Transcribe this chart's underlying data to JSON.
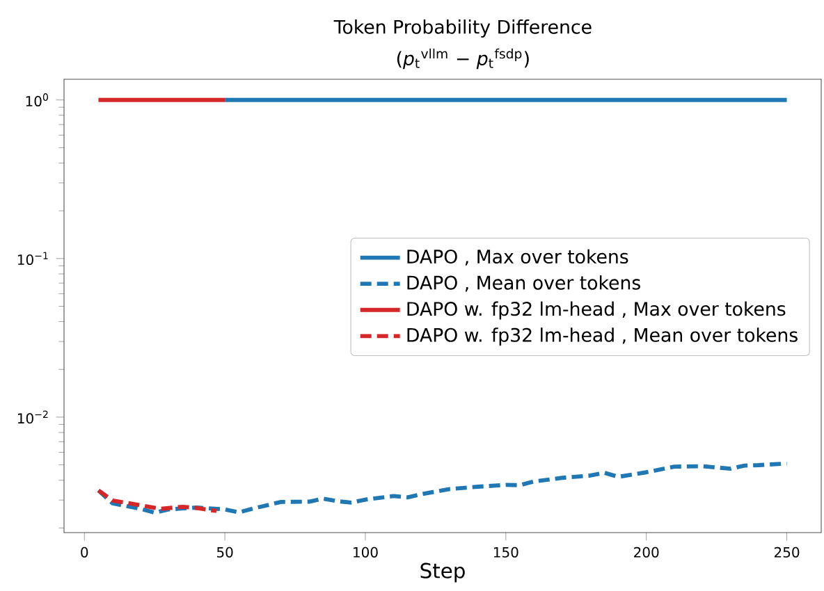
{
  "chart_data": {
    "type": "line",
    "title": "Token Probability Difference",
    "subtitle": "(*p*$_{t}$$^{vllm}$ − *p*$_{t}$$^{fsdp}$)",
    "xlabel": "Step",
    "log": "y",
    "legend": "right",
    "xlim": [
      -7.25,
      262.25
    ],
    "ylim": [
      0.00187,
      1.35
    ],
    "xticks": [
      0,
      50,
      100,
      150,
      200,
      250
    ],
    "yticks": [
      {
        "value": 0.01,
        "label": "10$^{−2}$"
      },
      {
        "value": 0.1,
        "label": "10$^{−1}$"
      },
      {
        "value": 1,
        "label": "10$^{0}$"
      }
    ],
    "series": [
      {
        "name": "DAPO , Max over tokens",
        "color": "#1f77b4",
        "line_style": "solid",
        "x": [
          50,
          250
        ],
        "values": [
          1,
          1
        ]
      },
      {
        "name": "DAPO , Mean over tokens",
        "color": "#1f77b4",
        "line_style": "dashed",
        "x": [
          5,
          10,
          20,
          25,
          30,
          40,
          50,
          55,
          60,
          70,
          80,
          85,
          90,
          95,
          100,
          110,
          115,
          120,
          130,
          140,
          150,
          155,
          160,
          170,
          180,
          185,
          190,
          200,
          210,
          220,
          230,
          235,
          240,
          250
        ],
        "values": [
          0.00345,
          0.00286,
          0.00264,
          0.0025,
          0.00262,
          0.00269,
          0.00262,
          0.00251,
          0.00265,
          0.00292,
          0.00293,
          0.00306,
          0.00295,
          0.00289,
          0.00302,
          0.00318,
          0.00312,
          0.00327,
          0.00352,
          0.00364,
          0.00374,
          0.00372,
          0.00393,
          0.00414,
          0.00428,
          0.00446,
          0.0042,
          0.00449,
          0.00487,
          0.0049,
          0.00473,
          0.00495,
          0.00498,
          0.0051
        ]
      },
      {
        "name": "DAPO w. fp32 lm-head , Max over tokens",
        "color": "#d62728",
        "line_style": "solid",
        "x": [
          5,
          50
        ],
        "values": [
          1,
          1
        ]
      },
      {
        "name": "DAPO w. fp32 lm-head , Mean over tokens",
        "color": "#d62728",
        "line_style": "dashed",
        "x": [
          5,
          10,
          20,
          27,
          35,
          40,
          47
        ],
        "values": [
          0.00345,
          0.00298,
          0.00278,
          0.00264,
          0.00272,
          0.00267,
          0.00256
        ]
      }
    ]
  }
}
